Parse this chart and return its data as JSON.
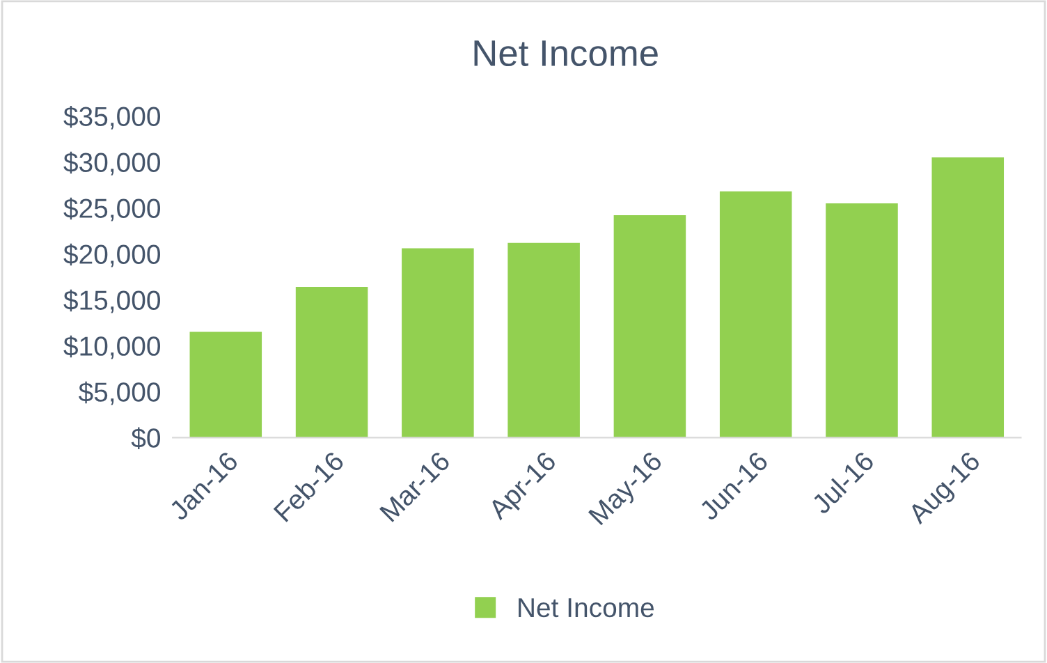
{
  "chart_data": {
    "type": "bar",
    "title": "Net Income",
    "categories": [
      "Jan-16",
      "Feb-16",
      "Mar-16",
      "Apr-16",
      "May-16",
      "Jun-16",
      "Jul-16",
      "Aug-16"
    ],
    "series": [
      {
        "name": "Net Income",
        "color": "#92d050",
        "values": [
          11500,
          16400,
          20600,
          21200,
          24200,
          26800,
          25500,
          30500
        ]
      }
    ],
    "ylim": [
      0,
      35000
    ],
    "yticks": [
      {
        "value": 0,
        "label": "$0"
      },
      {
        "value": 5000,
        "label": "$5,000"
      },
      {
        "value": 10000,
        "label": "$10,000"
      },
      {
        "value": 15000,
        "label": "$15,000"
      },
      {
        "value": 20000,
        "label": "$20,000"
      },
      {
        "value": 25000,
        "label": "$25,000"
      },
      {
        "value": 30000,
        "label": "$30,000"
      },
      {
        "value": 35000,
        "label": "$35,000"
      }
    ],
    "grid": false,
    "legend": "bottom"
  }
}
